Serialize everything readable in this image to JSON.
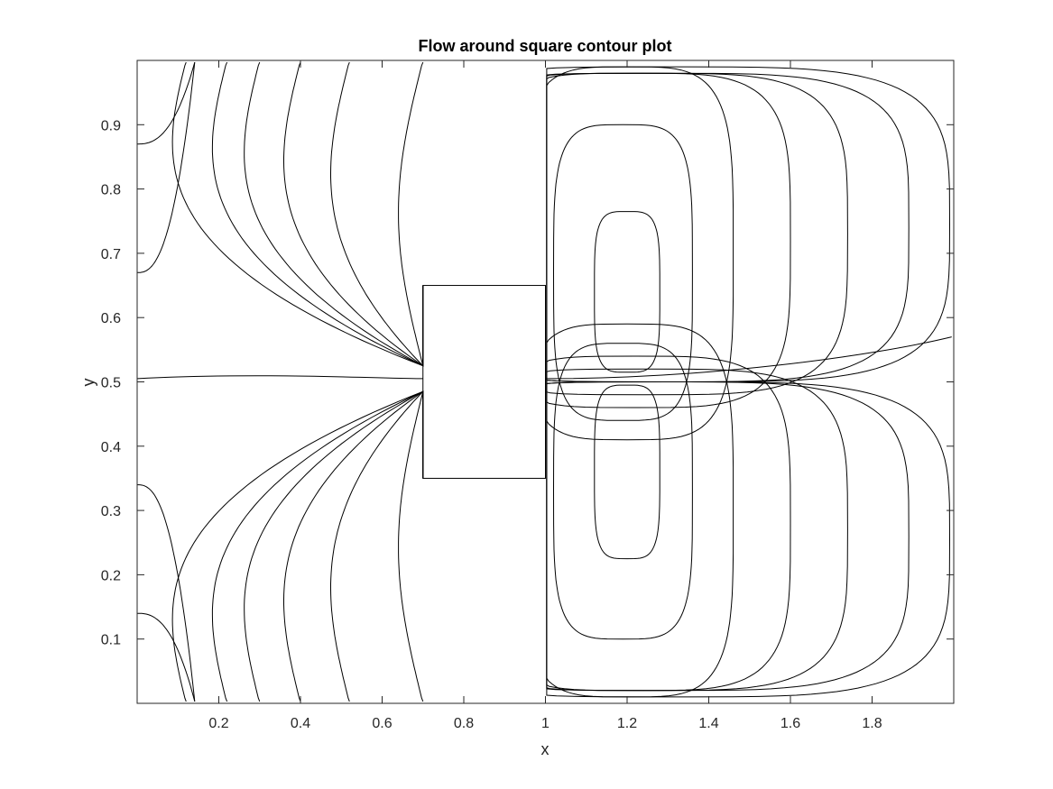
{
  "chart_data": {
    "type": "contour",
    "title": "Flow around square contour plot",
    "xlabel": "x",
    "ylabel": "y",
    "xlim": [
      0,
      2
    ],
    "ylim": [
      0,
      1
    ],
    "xticks": [
      0.2,
      0.4,
      0.6,
      0.8,
      1,
      1.2,
      1.4,
      1.6,
      1.8
    ],
    "xtick_labels": [
      "0.2",
      "0.4",
      "0.6",
      "0.8",
      "1",
      "1.2",
      "1.4",
      "1.6",
      "1.8"
    ],
    "yticks": [
      0.1,
      0.2,
      0.3,
      0.4,
      0.5,
      0.6,
      0.7,
      0.8,
      0.9
    ],
    "ytick_labels": [
      "0.1",
      "0.2",
      "0.3",
      "0.4",
      "0.5",
      "0.6",
      "0.7",
      "0.8",
      "0.9"
    ],
    "grid": false,
    "line_color": "#000000",
    "obstacle": {
      "shape": "square",
      "x": [
        0.7,
        1.0
      ],
      "y": [
        0.35,
        0.65
      ]
    },
    "upper_recirculation_contours": [
      {
        "center": [
          1.2,
          0.64
        ],
        "rx": 0.08,
        "ry": 0.125
      },
      {
        "center": [
          1.19,
          0.67
        ],
        "rx": 0.17,
        "ry": 0.23
      },
      {
        "center": [
          1.2,
          0.7
        ],
        "rx": 0.26,
        "ry": 0.29
      },
      {
        "center": [
          1.22,
          0.72
        ],
        "rx": 0.38,
        "ry": 0.26
      },
      {
        "center": [
          1.24,
          0.73
        ],
        "rx": 0.5,
        "ry": 0.25
      },
      {
        "center": [
          1.27,
          0.74
        ],
        "rx": 0.62,
        "ry": 0.24
      },
      {
        "center": [
          1.3,
          0.745
        ],
        "rx": 0.69,
        "ry": 0.245
      }
    ],
    "lower_recirculation_contours": [
      {
        "center": [
          1.2,
          0.36
        ],
        "rx": 0.08,
        "ry": 0.135
      },
      {
        "center": [
          1.19,
          0.33
        ],
        "rx": 0.17,
        "ry": 0.23
      },
      {
        "center": [
          1.2,
          0.3
        ],
        "rx": 0.26,
        "ry": 0.29
      },
      {
        "center": [
          1.22,
          0.28
        ],
        "rx": 0.38,
        "ry": 0.26
      },
      {
        "center": [
          1.24,
          0.27
        ],
        "rx": 0.5,
        "ry": 0.25
      },
      {
        "center": [
          1.27,
          0.26
        ],
        "rx": 0.62,
        "ry": 0.24
      },
      {
        "center": [
          1.3,
          0.255
        ],
        "rx": 0.69,
        "ry": 0.245
      }
    ],
    "upstream_contour_start_x": [
      0.1,
      0.2,
      0.28,
      0.38,
      0.5,
      0.68
    ],
    "inlet_contour_y": [
      0.87,
      0.67,
      0.34,
      0.14
    ],
    "centerline_y": 0.505
  }
}
